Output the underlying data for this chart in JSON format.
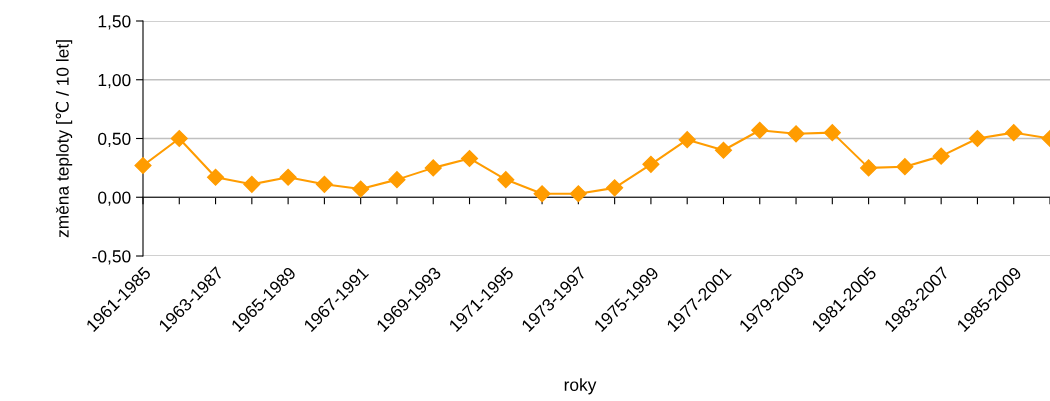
{
  "chart_data": {
    "type": "line",
    "xlabel": "roky",
    "ylabel": "změna teploty [℃ / 10 let]",
    "categories": [
      "1961-1985",
      null,
      "1963-1987",
      null,
      "1965-1989",
      null,
      "1967-1991",
      null,
      "1969-1993",
      null,
      "1971-1995",
      null,
      "1973-1997",
      null,
      "1975-1999",
      null,
      "1977-2001",
      null,
      "1979-2003",
      null,
      "1981-2005",
      null,
      "1983-2007",
      null,
      "1985-2009",
      null
    ],
    "series": [
      {
        "color": "#ff9c00",
        "values": [
          0.27,
          0.5,
          0.17,
          0.11,
          0.17,
          0.11,
          0.07,
          0.15,
          0.25,
          0.33,
          0.15,
          0.03,
          0.03,
          0.08,
          0.28,
          0.49,
          0.4,
          0.57,
          0.54,
          0.55,
          0.25,
          0.26,
          0.35,
          0.5,
          0.55,
          0.5
        ]
      }
    ],
    "ylim": [
      -0.5,
      1.5
    ],
    "yticks": [
      {
        "value": -0.5,
        "label": "-0,50"
      },
      {
        "value": 0,
        "label": "0,00"
      },
      {
        "value": 0.5,
        "label": "0,50"
      },
      {
        "value": 1.0,
        "label": "1,00"
      },
      {
        "value": 1.5,
        "label": "1,50"
      }
    ],
    "grid": "y",
    "marker": "diamond",
    "line_style": "solid"
  }
}
